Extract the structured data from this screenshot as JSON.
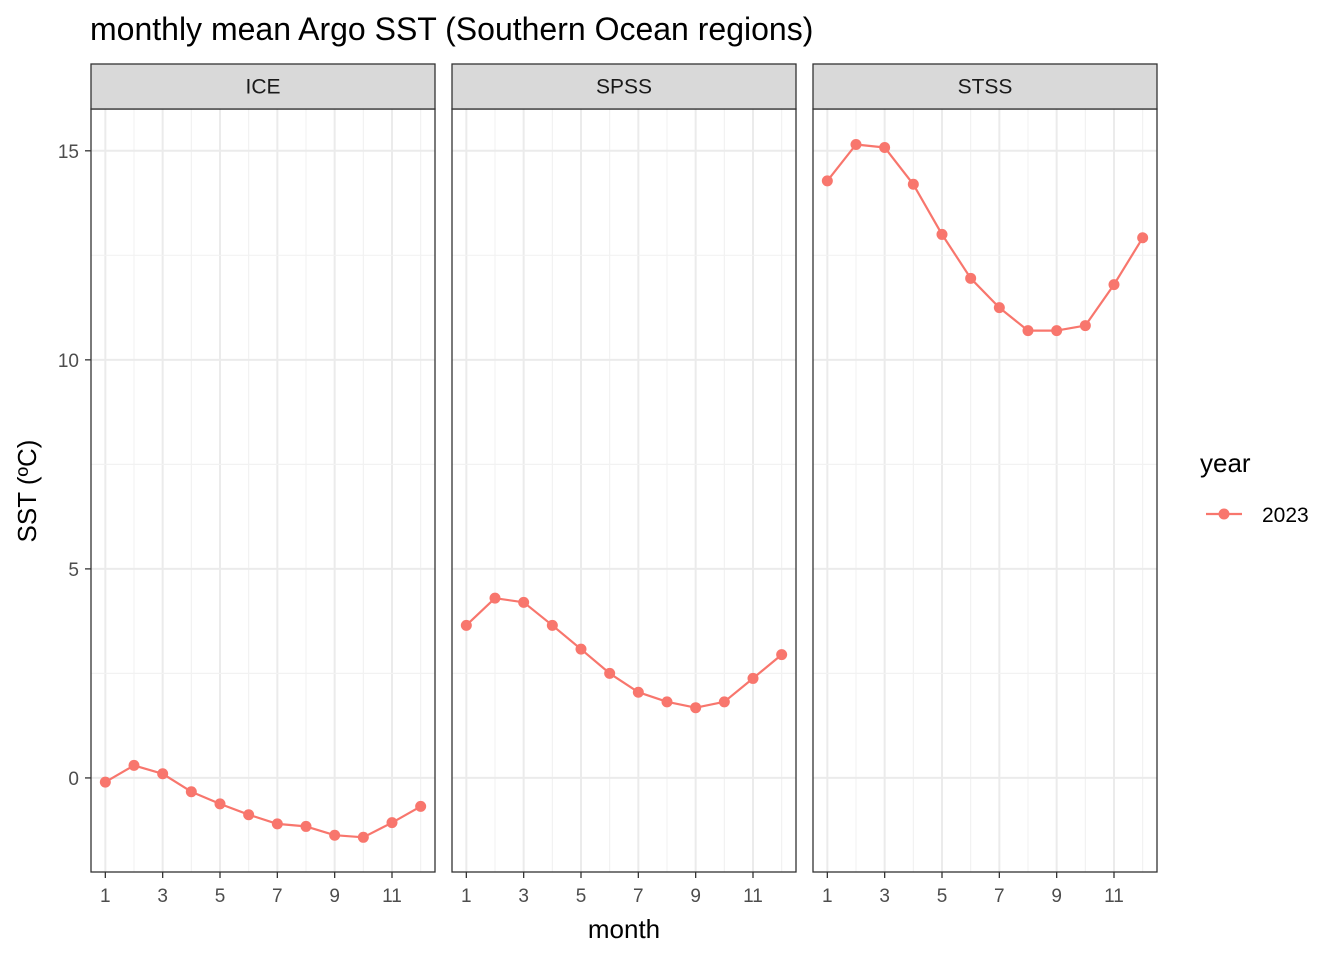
{
  "chart_data": {
    "type": "line",
    "title": "monthly mean Argo SST (Southern Ocean regions)",
    "xlabel": "month",
    "ylabel": "SST (ºC)",
    "x_ticks": [
      1,
      3,
      5,
      7,
      9,
      11
    ],
    "x_range": [
      0.5,
      12.5
    ],
    "y_ticks": [
      0,
      5,
      10,
      15
    ],
    "y_range": [
      -2.25,
      16.0
    ],
    "grid": true,
    "legend": {
      "title": "year",
      "placement": "right",
      "entries": [
        "2023"
      ]
    },
    "series_color": "#F8766D",
    "panels": [
      {
        "label": "ICE",
        "series": [
          {
            "name": "2023",
            "x": [
              1,
              2,
              3,
              4,
              5,
              6,
              7,
              8,
              9,
              10,
              11,
              12
            ],
            "y": [
              -0.1,
              0.3,
              0.1,
              -0.33,
              -0.62,
              -0.88,
              -1.1,
              -1.16,
              -1.37,
              -1.42,
              -1.07,
              -0.68
            ]
          }
        ]
      },
      {
        "label": "SPSS",
        "series": [
          {
            "name": "2023",
            "x": [
              1,
              2,
              3,
              4,
              5,
              6,
              7,
              8,
              9,
              10,
              11,
              12
            ],
            "y": [
              3.65,
              4.3,
              4.2,
              3.65,
              3.08,
              2.5,
              2.05,
              1.82,
              1.68,
              1.82,
              2.38,
              2.95
            ]
          }
        ]
      },
      {
        "label": "STSS",
        "series": [
          {
            "name": "2023",
            "x": [
              1,
              2,
              3,
              4,
              5,
              6,
              7,
              8,
              9,
              10,
              11,
              12
            ],
            "y": [
              14.28,
              15.15,
              15.08,
              14.2,
              13.0,
              11.95,
              11.25,
              10.7,
              10.7,
              10.82,
              11.8,
              12.92
            ]
          }
        ]
      }
    ]
  }
}
